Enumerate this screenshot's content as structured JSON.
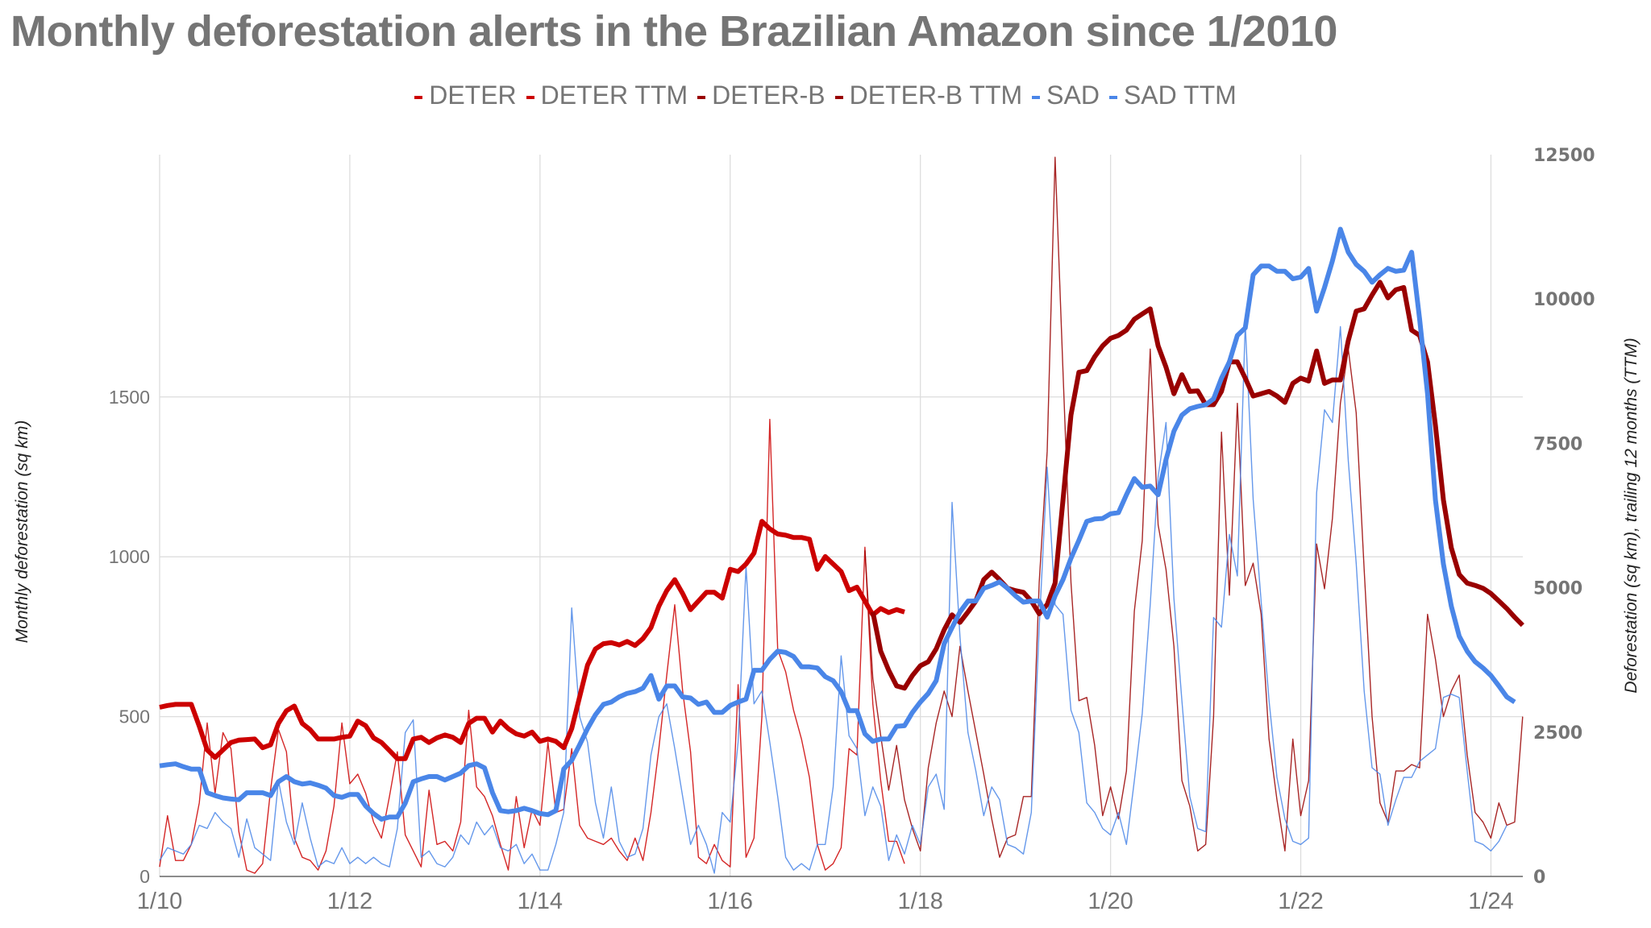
{
  "chart_data": {
    "type": "line",
    "title": "Monthly deforestation alerts in the Brazilian Amazon since 1/2010",
    "legend_position": "top",
    "grid": true,
    "x_tick_labels": [
      "1/10",
      "1/12",
      "1/14",
      "1/16",
      "1/18",
      "1/20",
      "1/22",
      "1/24"
    ],
    "y_left": {
      "label": "Monthly deforestation (sq km)",
      "ticks": [
        0,
        500,
        1000,
        1500
      ],
      "range": [
        0,
        2258
      ]
    },
    "y_right": {
      "label": "Deforestation (sq km), trailing 12 months (TTM)",
      "ticks": [
        0,
        2500,
        5000,
        7500,
        10000,
        12500
      ],
      "range": [
        0,
        12500
      ]
    },
    "series": [
      {
        "name": "DETER",
        "axis": "left",
        "color": "#cc0000",
        "style": "thin",
        "start": "1/2010",
        "values": [
          30,
          190,
          50,
          50,
          100,
          230,
          480,
          260,
          450,
          400,
          140,
          20,
          10,
          40,
          270,
          460,
          390,
          120,
          60,
          50,
          20,
          80,
          220,
          480,
          290,
          320,
          260,
          170,
          120,
          250,
          390,
          130,
          80,
          30,
          270,
          100,
          110,
          80,
          170,
          520,
          280,
          250,
          190,
          100,
          20,
          250,
          90,
          210,
          160,
          420,
          200,
          210,
          400,
          160,
          120,
          110,
          100,
          120,
          80,
          50,
          120,
          50,
          200,
          400,
          630,
          850,
          580,
          390,
          60,
          40,
          100,
          50,
          30,
          600,
          60,
          120,
          500,
          1430,
          710,
          640,
          520,
          430,
          310,
          100,
          20,
          40,
          90,
          400,
          380,
          1030,
          540,
          300,
          110,
          110,
          40
        ]
      },
      {
        "name": "DETER TTM",
        "axis": "right",
        "color": "#cc0000",
        "style": "thick",
        "start": "1/2010",
        "values": [
          2930,
          2960,
          2980,
          2980,
          2980,
          2600,
          2190,
          2060,
          2190,
          2320,
          2360,
          2370,
          2380,
          2230,
          2280,
          2650,
          2870,
          2950,
          2650,
          2540,
          2380,
          2380,
          2380,
          2410,
          2430,
          2690,
          2610,
          2400,
          2320,
          2180,
          2040,
          2040,
          2380,
          2410,
          2320,
          2400,
          2450,
          2410,
          2320,
          2650,
          2740,
          2740,
          2500,
          2690,
          2560,
          2470,
          2430,
          2500,
          2340,
          2380,
          2340,
          2230,
          2560,
          3110,
          3660,
          3940,
          4030,
          4050,
          4010,
          4070,
          4000,
          4120,
          4310,
          4680,
          4950,
          5140,
          4900,
          4620,
          4770,
          4920,
          4920,
          4820,
          5320,
          5280,
          5410,
          5600,
          6150,
          6020,
          5930,
          5910,
          5870,
          5870,
          5840,
          5320,
          5540,
          5410,
          5280,
          4950,
          5010,
          4770,
          4530,
          4640,
          4570,
          4620,
          4580
        ]
      },
      {
        "name": "DETER-B",
        "axis": "left",
        "color": "#990000",
        "style": "thin",
        "start": "6/2017",
        "values": [
          1020,
          620,
          440,
          270,
          410,
          240,
          150,
          80,
          340,
          480,
          580,
          500,
          720,
          580,
          450,
          320,
          180,
          60,
          120,
          130,
          250,
          250,
          920,
          1330,
          2250,
          1580,
          920,
          550,
          560,
          410,
          190,
          280,
          180,
          330,
          830,
          1050,
          1650,
          1100,
          960,
          720,
          300,
          220,
          80,
          100,
          500,
          1390,
          880,
          1480,
          910,
          980,
          820,
          430,
          240,
          80,
          430,
          190,
          300,
          1040,
          900,
          1120,
          1480,
          1650,
          1450,
          960,
          500,
          230,
          170,
          330,
          330,
          350,
          340,
          820,
          680,
          500,
          580,
          630,
          380,
          200,
          170,
          120,
          230,
          160,
          170,
          500
        ]
      },
      {
        "name": "DETER-B TTM",
        "axis": "right",
        "color": "#990000",
        "style": "thick",
        "start": "7/2017",
        "values": [
          4580,
          3900,
          3570,
          3300,
          3260,
          3480,
          3650,
          3720,
          3940,
          4270,
          4530,
          4400,
          4580,
          4770,
          5140,
          5270,
          5140,
          4990,
          4950,
          4920,
          4770,
          4550,
          4710,
          5080,
          6520,
          7990,
          8730,
          8760,
          9000,
          9190,
          9320,
          9370,
          9460,
          9650,
          9740,
          9830,
          9190,
          8820,
          8360,
          8690,
          8400,
          8410,
          8170,
          8170,
          8400,
          8910,
          8910,
          8630,
          8320,
          8360,
          8400,
          8320,
          8210,
          8540,
          8630,
          8580,
          9100,
          8540,
          8600,
          8600,
          9280,
          9790,
          9830,
          10070,
          10290,
          10020,
          10160,
          10200,
          9460,
          9370,
          8910,
          7810,
          6520,
          5690,
          5230,
          5080,
          5040,
          4990,
          4900,
          4770,
          4640,
          4490,
          4350
        ]
      },
      {
        "name": "SAD",
        "axis": "left",
        "color": "#4a86e8",
        "style": "thin",
        "start": "1/2010",
        "values": [
          50,
          90,
          80,
          70,
          100,
          160,
          150,
          200,
          170,
          150,
          60,
          180,
          90,
          70,
          50,
          300,
          170,
          100,
          230,
          120,
          30,
          50,
          40,
          90,
          40,
          60,
          40,
          60,
          40,
          30,
          150,
          450,
          490,
          60,
          80,
          40,
          30,
          60,
          130,
          100,
          170,
          130,
          160,
          90,
          80,
          100,
          40,
          70,
          20,
          20,
          100,
          200,
          840,
          500,
          420,
          230,
          120,
          280,
          110,
          60,
          70,
          150,
          380,
          500,
          540,
          400,
          250,
          100,
          160,
          100,
          10,
          200,
          170,
          420,
          970,
          540,
          580,
          420,
          250,
          60,
          20,
          40,
          20,
          100,
          100,
          280,
          690,
          440,
          400,
          190,
          280,
          220,
          50,
          130,
          70,
          160,
          100,
          280,
          320,
          210,
          1170,
          750,
          450,
          330,
          190,
          280,
          240,
          100,
          90,
          70,
          200,
          780,
          1280,
          850,
          820,
          520,
          450,
          230,
          200,
          150,
          130,
          200,
          100,
          300,
          510,
          850,
          1250,
          1420,
          870,
          550,
          250,
          150,
          140,
          810,
          780,
          1070,
          940,
          1730,
          1180,
          860,
          550,
          310,
          180,
          110,
          100,
          120,
          1200,
          1460,
          1420,
          1720,
          1300,
          980,
          580,
          340,
          320,
          160,
          240,
          310,
          310,
          360,
          380,
          400,
          560,
          570,
          560,
          330,
          110,
          100,
          80,
          110,
          160
        ]
      },
      {
        "name": "SAD TTM",
        "axis": "right",
        "color": "#4a86e8",
        "style": "thick",
        "start": "1/2010",
        "values": [
          1915,
          1935,
          1950,
          1900,
          1860,
          1860,
          1450,
          1400,
          1360,
          1340,
          1330,
          1450,
          1450,
          1450,
          1400,
          1640,
          1730,
          1640,
          1600,
          1620,
          1580,
          1530,
          1400,
          1370,
          1420,
          1420,
          1220,
          1090,
          990,
          1030,
          1030,
          1270,
          1640,
          1690,
          1730,
          1730,
          1670,
          1730,
          1790,
          1920,
          1950,
          1880,
          1450,
          1140,
          1120,
          1140,
          1180,
          1140,
          1090,
          1070,
          1140,
          1860,
          2010,
          2280,
          2560,
          2800,
          2980,
          3020,
          3110,
          3170,
          3200,
          3260,
          3480,
          3070,
          3300,
          3300,
          3110,
          3090,
          2980,
          3020,
          2840,
          2840,
          2960,
          3020,
          3070,
          3570,
          3570,
          3760,
          3900,
          3880,
          3810,
          3630,
          3630,
          3610,
          3460,
          3390,
          3200,
          2870,
          2870,
          2470,
          2340,
          2380,
          2380,
          2600,
          2610,
          2840,
          3020,
          3170,
          3390,
          4030,
          4310,
          4580,
          4770,
          4770,
          4990,
          5040,
          5100,
          4990,
          4860,
          4750,
          4770,
          4770,
          4490,
          4860,
          5140,
          5510,
          5820,
          6150,
          6190,
          6200,
          6280,
          6300,
          6610,
          6890,
          6740,
          6760,
          6610,
          7220,
          7710,
          7990,
          8100,
          8140,
          8170,
          8270,
          8630,
          8910,
          9370,
          9500,
          10420,
          10570,
          10570,
          10480,
          10480,
          10350,
          10380,
          10530,
          9790,
          10200,
          10660,
          11210,
          10810,
          10600,
          10480,
          10290,
          10420,
          10530,
          10480,
          10500,
          10810,
          9650,
          8360,
          6520,
          5410,
          4680,
          4160,
          3900,
          3720,
          3610,
          3480,
          3300,
          3110,
          3020
        ]
      }
    ]
  }
}
